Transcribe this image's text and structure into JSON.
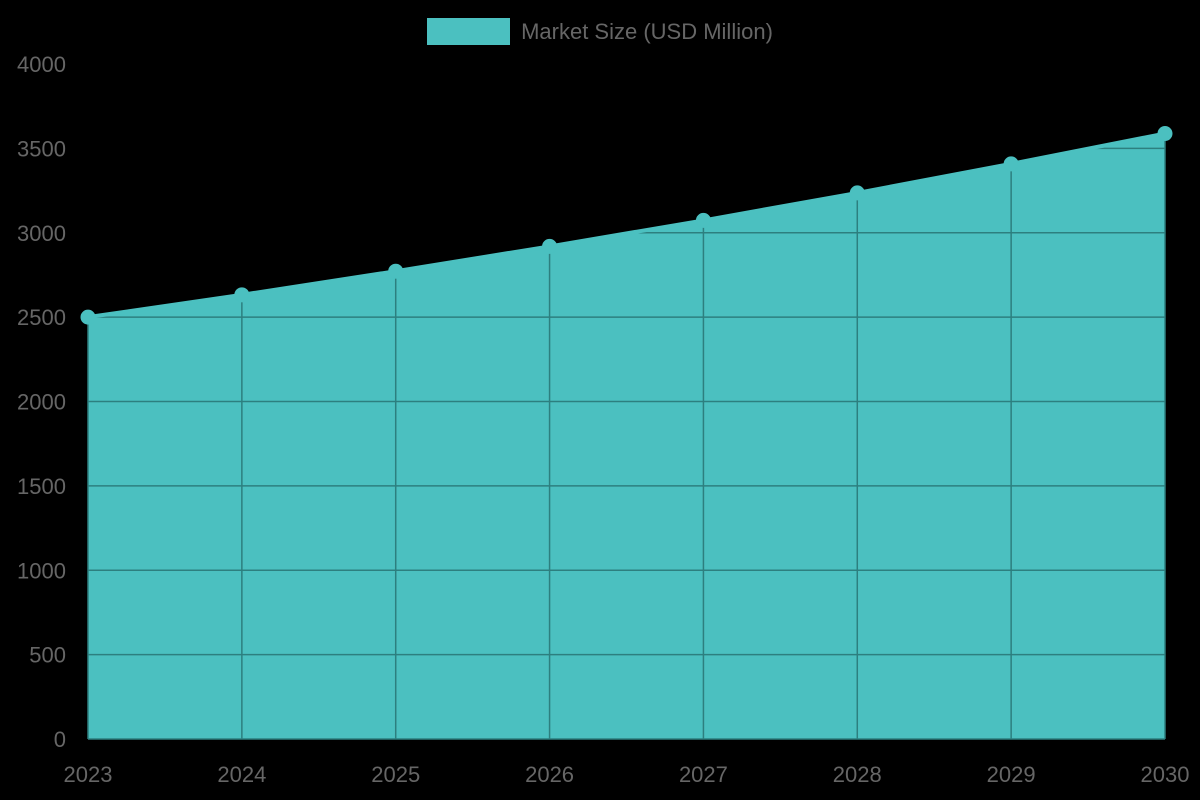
{
  "chart_data": {
    "type": "area",
    "title": "",
    "xlabel": "",
    "ylabel": "",
    "legend": {
      "position": "top",
      "entries": [
        "Market Size (USD Million)"
      ]
    },
    "categories": [
      "2023",
      "2024",
      "2025",
      "2026",
      "2027",
      "2028",
      "2029",
      "2030"
    ],
    "series": [
      {
        "name": "Market Size (USD Million)",
        "values": [
          2500,
          2632,
          2772,
          2919,
          3073,
          3236,
          3408,
          3588
        ],
        "color": "#4BC0C0"
      }
    ],
    "ylim": [
      0,
      4000
    ],
    "yticks": [
      0,
      500,
      1000,
      1500,
      2000,
      2500,
      3000,
      3500,
      4000
    ],
    "grid": true
  },
  "legend": {
    "label": "Market Size (USD Million)",
    "color": "#4BC0C0"
  },
  "colors": {
    "background": "#000000",
    "fill": "#4BC0C0",
    "grid": "#2d7f7f",
    "tick_text": "#666666"
  }
}
